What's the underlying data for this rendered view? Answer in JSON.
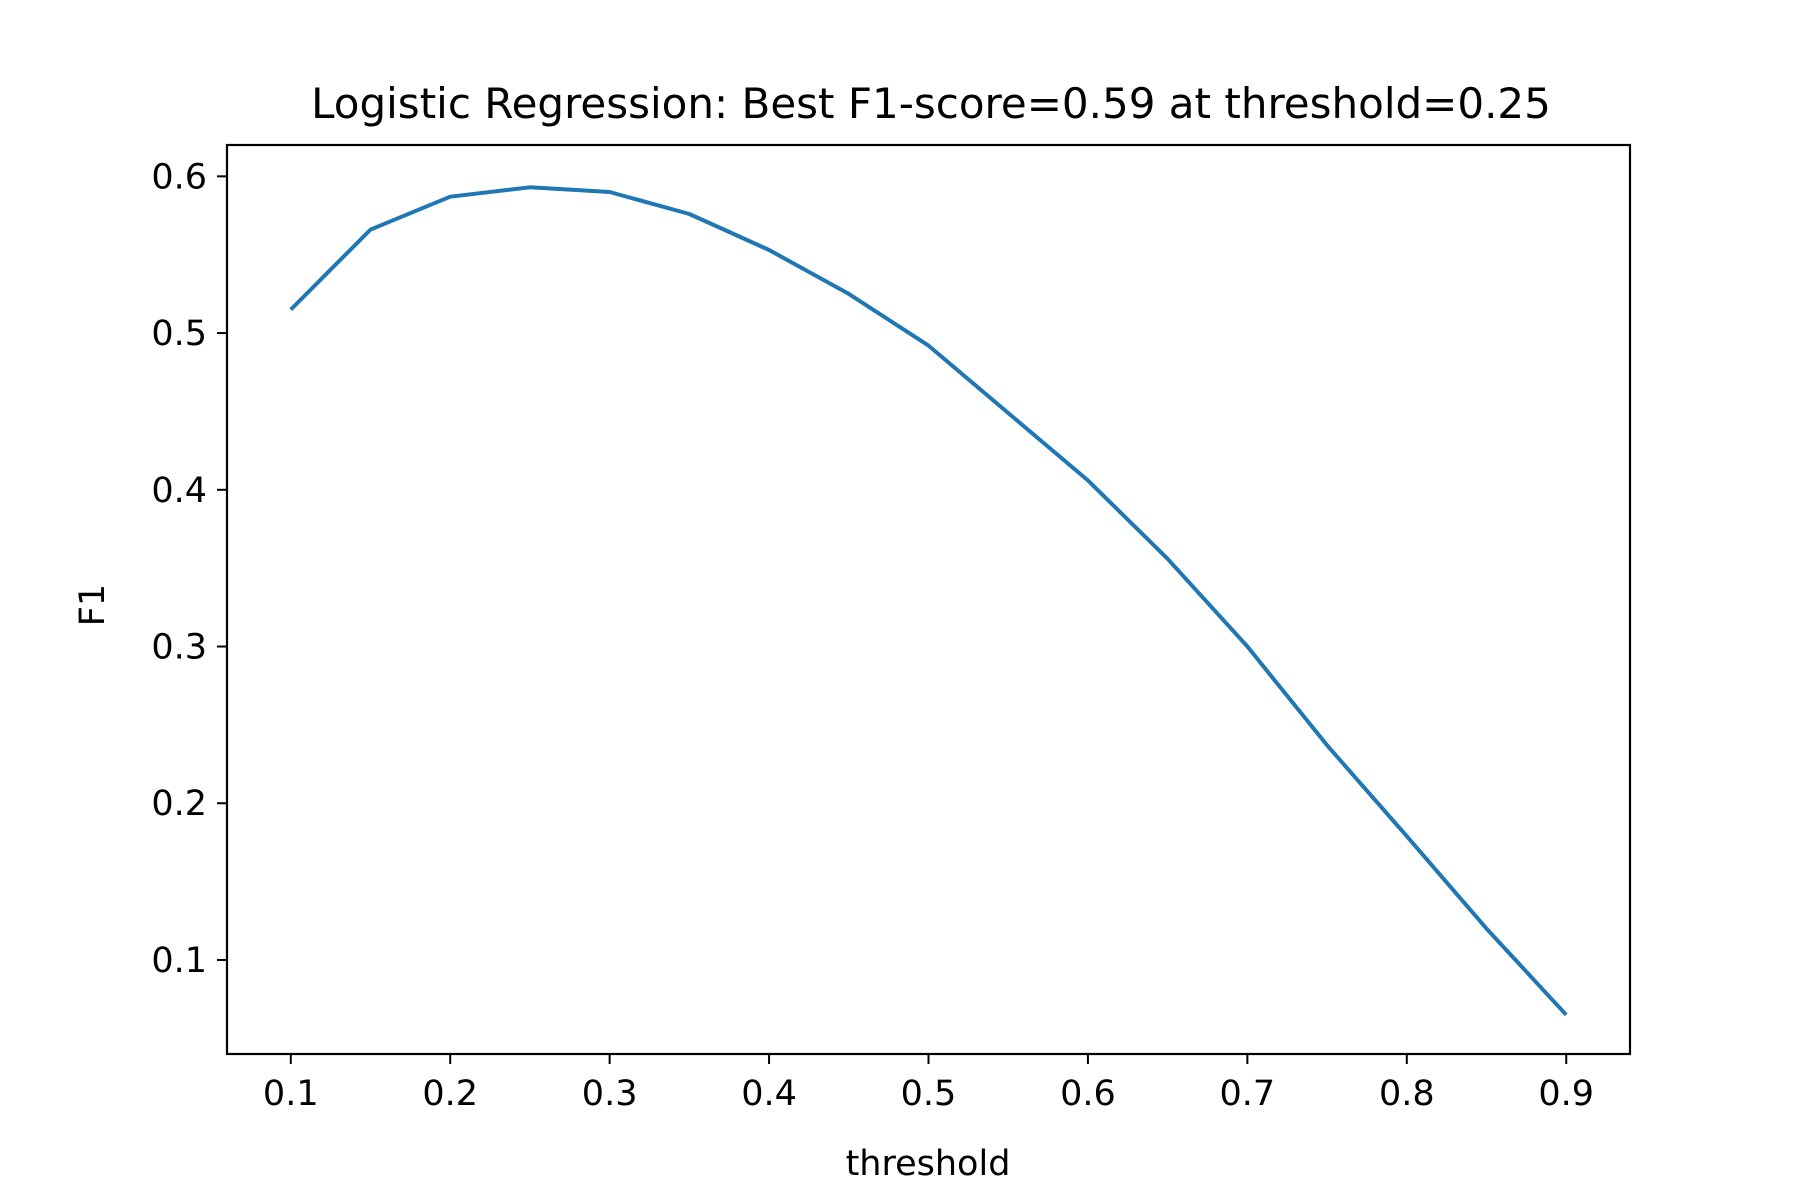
{
  "chart_data": {
    "type": "line",
    "title": "Logistic Regression: Best F1-score=0.59 at threshold=0.25",
    "xlabel": "threshold",
    "ylabel": "F1",
    "xlim": [
      0.06,
      0.94
    ],
    "ylim": [
      0.04,
      0.62
    ],
    "x_ticks": [
      0.1,
      0.2,
      0.3,
      0.4,
      0.5,
      0.6,
      0.7,
      0.8,
      0.9
    ],
    "x_tick_labels": [
      "0.1",
      "0.2",
      "0.3",
      "0.4",
      "0.5",
      "0.6",
      "0.7",
      "0.8",
      "0.9"
    ],
    "y_ticks": [
      0.1,
      0.2,
      0.3,
      0.4,
      0.5,
      0.6
    ],
    "y_tick_labels": [
      "0.1",
      "0.2",
      "0.3",
      "0.4",
      "0.5",
      "0.6"
    ],
    "grid": false,
    "series": [
      {
        "color": "#1f77b4",
        "x": [
          0.1,
          0.15,
          0.2,
          0.25,
          0.3,
          0.35,
          0.4,
          0.45,
          0.5,
          0.55,
          0.6,
          0.65,
          0.7,
          0.75,
          0.8,
          0.85,
          0.9
        ],
        "y": [
          0.515,
          0.566,
          0.587,
          0.593,
          0.59,
          0.576,
          0.553,
          0.525,
          0.492,
          0.449,
          0.406,
          0.356,
          0.3,
          0.237,
          0.179,
          0.12,
          0.065
        ]
      }
    ]
  }
}
